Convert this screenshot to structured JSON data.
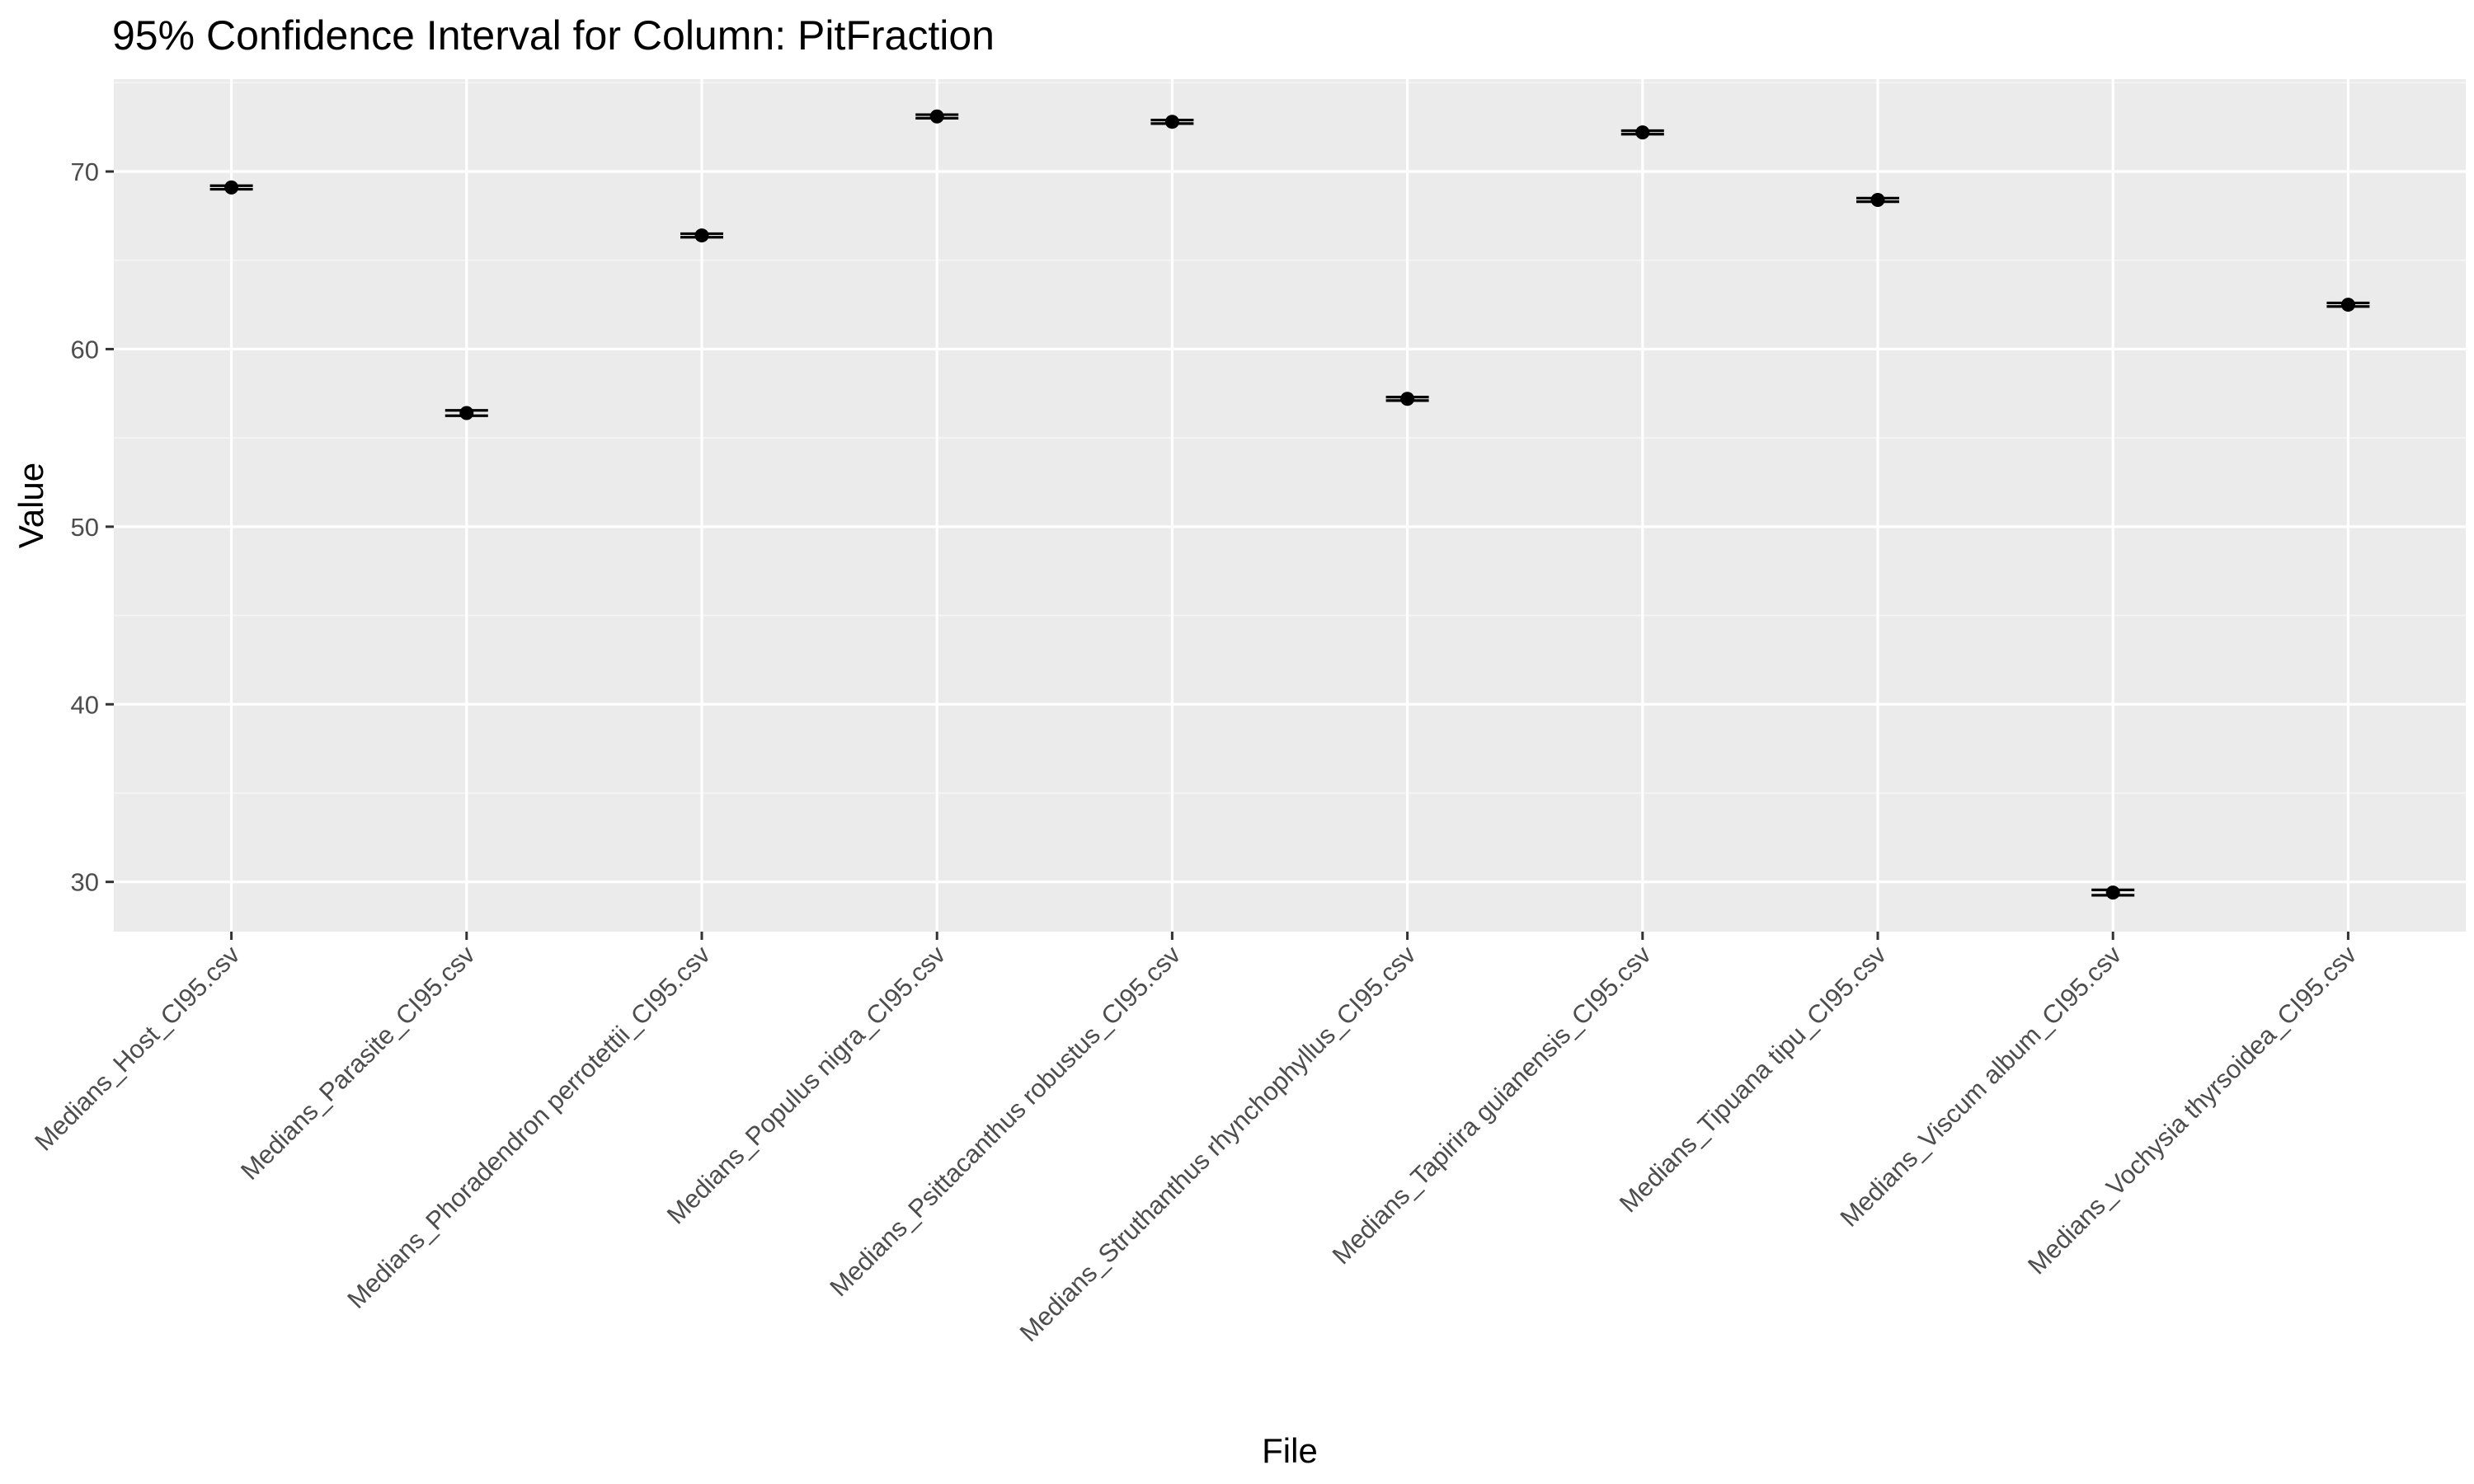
{
  "chart_data": {
    "type": "errorbar",
    "title": "95% Confidence Interval for Column: PitFraction",
    "xlabel": "File",
    "ylabel": "Value",
    "ylim": [
      27.2,
      75.2
    ],
    "yticks": [
      30,
      40,
      50,
      60,
      70
    ],
    "grid": true,
    "legend": "none",
    "colors": {
      "panel": "#ebebeb",
      "grid_major": "#ffffff",
      "grid_minor": "#f5f5f5",
      "marker": "#000000",
      "tick_label": "#4d4d4d"
    },
    "categories": [
      "Medians_Host_CI95.csv",
      "Medians_Parasite_CI95.csv",
      "Medians_Phoradendron perrotettii_CI95.csv",
      "Medians_Populus nigra_CI95.csv",
      "Medians_Psittacanthus robustus_CI95.csv",
      "Medians_Struthanthus rhynchophyllus_CI95.csv",
      "Medians_Tapirira guianensis_CI95.csv",
      "Medians_Tipuana tipu_CI95.csv",
      "Medians_Viscum album_CI95.csv",
      "Medians_Vochysia thyrsoidea_CI95.csv"
    ],
    "values": [
      69.1,
      56.4,
      66.4,
      73.1,
      72.8,
      57.2,
      72.2,
      68.4,
      29.4,
      62.5
    ],
    "lower": [
      69.0,
      56.25,
      66.3,
      73.0,
      72.7,
      57.1,
      72.1,
      68.3,
      29.25,
      62.4
    ],
    "upper": [
      69.2,
      56.55,
      66.5,
      73.2,
      72.9,
      57.3,
      72.3,
      68.5,
      29.55,
      62.6
    ]
  }
}
